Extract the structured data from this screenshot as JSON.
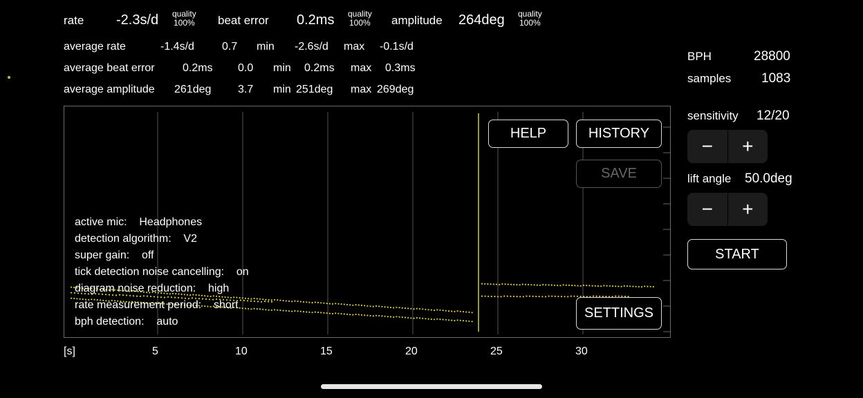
{
  "header": {
    "rate_label": "rate",
    "rate_value": "-2.3s/d",
    "rate_quality_label": "quality",
    "rate_quality_value": "100%",
    "beat_error_label": "beat error",
    "beat_error_value": "0.2ms",
    "beat_quality_label": "quality",
    "beat_quality_value": "100%",
    "amplitude_label": "amplitude",
    "amplitude_value": "264deg",
    "amp_quality_label": "quality",
    "amp_quality_value": "100%"
  },
  "averages": {
    "rate": {
      "label": "average rate",
      "value": "-1.4s/d",
      "dev": "0.7",
      "min_label": "min",
      "min": "-2.6s/d",
      "max_label": "max",
      "max": "-0.1s/d"
    },
    "beat": {
      "label": "average beat error",
      "value": "0.2ms",
      "dev": "0.0",
      "min_label": "min",
      "min": "0.2ms",
      "max_label": "max",
      "max": "0.3ms"
    },
    "amp": {
      "label": "average amplitude",
      "value": "261deg",
      "dev": "3.7",
      "min_label": "min",
      "min": "251deg",
      "max_label": "max",
      "max": "269deg"
    }
  },
  "side": {
    "bph_label": "BPH",
    "bph_value": "28800",
    "samples_label": "samples",
    "samples_value": "1083",
    "sensitivity_label": "sensitivity",
    "sensitivity_value": "12/20",
    "lift_label": "lift angle",
    "lift_value": "50.0deg",
    "minus": "−",
    "plus": "+",
    "start_label": "START"
  },
  "buttons": {
    "help": "HELP",
    "history": "HISTORY",
    "save": "SAVE",
    "settings": "SETTINGS"
  },
  "info": [
    {
      "k": "active mic:",
      "v": "Headphones"
    },
    {
      "k": "detection algorithm:",
      "v": "V2"
    },
    {
      "k": "super gain:",
      "v": "off"
    },
    {
      "k": "tick detection noise cancelling:",
      "v": "on"
    },
    {
      "k": "diagram noise reduction:",
      "v": "high"
    },
    {
      "k": "rate measurement period:",
      "v": "short"
    },
    {
      "k": "bph detection:",
      "v": "auto"
    }
  ],
  "axis": {
    "unit": "[s]",
    "ticks": [
      "5",
      "10",
      "15",
      "20",
      "25",
      "30"
    ]
  },
  "colors": {
    "trace": "#d4cc3a",
    "grid": "#555555"
  }
}
